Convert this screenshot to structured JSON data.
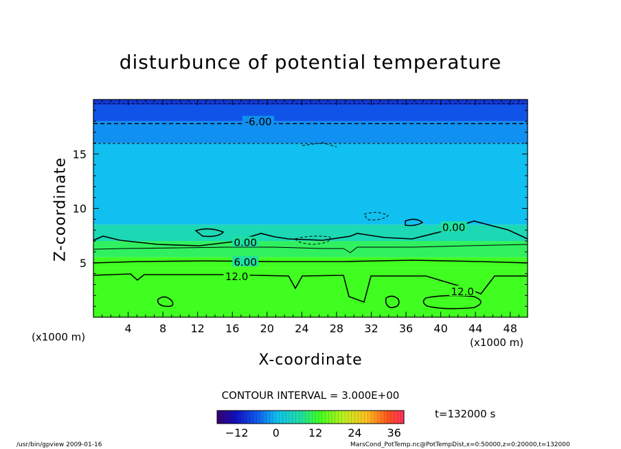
{
  "chart_data": {
    "type": "heatmap",
    "title": "disturbunce of potential temperature",
    "xlabel": "X-coordinate",
    "ylabel": "Z-coordinate",
    "x_unit_left": "(x1000 m)",
    "x_unit_right": "(x1000 m)",
    "xlim": [
      0,
      50
    ],
    "ylim": [
      0,
      20
    ],
    "x_ticks": [
      4,
      8,
      12,
      16,
      20,
      24,
      28,
      32,
      36,
      40,
      44,
      48
    ],
    "y_ticks": [
      5,
      10,
      15
    ],
    "x_tick_labels": [
      "4",
      "8",
      "12",
      "16",
      "20",
      "24",
      "28",
      "32",
      "36",
      "40",
      "44",
      "48"
    ],
    "y_tick_labels": [
      "5",
      "10",
      "15"
    ],
    "bands": [
      {
        "z0": 19.5,
        "z1": 20,
        "value": -9
      },
      {
        "z0": 18.0,
        "z1": 19.5,
        "value": -7
      },
      {
        "z0": 16.0,
        "z1": 18.0,
        "value": -4
      },
      {
        "z0": 8.5,
        "z1": 16.0,
        "value": -2
      },
      {
        "z0": 7.0,
        "z1": 8.5,
        "value": 1
      },
      {
        "z0": 5.5,
        "z1": 7.0,
        "value": 4
      },
      {
        "z0": 4.5,
        "z1": 5.5,
        "value": 8
      },
      {
        "z0": 0,
        "z1": 4.5,
        "value": 12
      }
    ],
    "contour_labels": [
      {
        "text": "-6.00",
        "x": 19,
        "z": 18.0
      },
      {
        "text": "0.00",
        "x": 17.5,
        "z": 6.9
      },
      {
        "text": "0.00",
        "x": 41.5,
        "z": 8.3
      },
      {
        "text": "6.00",
        "x": 17.5,
        "z": 5.1
      },
      {
        "text": "12.0",
        "x": 16.5,
        "z": 3.8
      },
      {
        "text": "12.0",
        "x": 42.5,
        "z": 2.4
      }
    ],
    "colorbar": {
      "min": -18,
      "max": 39,
      "ticks": [
        -12,
        0,
        12,
        24,
        36
      ],
      "tick_labels": [
        "−12",
        "0",
        "12",
        "24",
        "36"
      ]
    },
    "contour_interval": "CONTOUR INTERVAL = 3.000E+00",
    "time": "t=132000 s"
  },
  "footer": {
    "left": "/usr/bin/gpview   2009-01-16",
    "right": "MarsCond_PotTemp.nc@PotTempDist,x=0:50000,z=0:20000,t=132000"
  }
}
